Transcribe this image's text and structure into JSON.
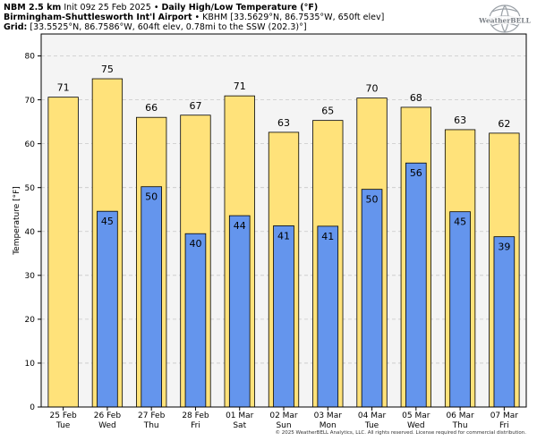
{
  "header": {
    "model": "NBM 2.5 km",
    "init": "Init 09z 25 Feb 2025",
    "separator": "•",
    "product": "Daily High/Low Temperature (°F)",
    "station_name": "Birmingham-Shuttlesworth Int'l Airport",
    "station_info": "KBHM [33.5629°N, 86.7535°W, 650ft elev]",
    "grid_label": "Grid:",
    "grid_info": "[33.5525°N, 86.7586°W, 604ft elev, 0.78mi to the SSW (202.3)°]"
  },
  "logo": {
    "text": "WeatherBELL"
  },
  "footer": "© 2025 WeatherBELL Analytics, LLC. All rights reserved. License required for commercial distribution.",
  "colors": {
    "high": "#ffe27a",
    "low": "#6495ed",
    "plot_bg": "#f4f4f4",
    "grid": "#c8c8c8"
  },
  "chart_data": {
    "type": "bar",
    "ylabel": "Temperature [°F]",
    "ylim": [
      0,
      85
    ],
    "yticks": [
      0,
      10,
      20,
      30,
      40,
      50,
      60,
      70,
      80
    ],
    "grid": true,
    "categories": [
      {
        "date": "25 Feb",
        "day": "Tue"
      },
      {
        "date": "26 Feb",
        "day": "Wed"
      },
      {
        "date": "27 Feb",
        "day": "Thu"
      },
      {
        "date": "28 Feb",
        "day": "Fri"
      },
      {
        "date": "01 Mar",
        "day": "Sat"
      },
      {
        "date": "02 Mar",
        "day": "Sun"
      },
      {
        "date": "03 Mar",
        "day": "Mon"
      },
      {
        "date": "04 Mar",
        "day": "Tue"
      },
      {
        "date": "05 Mar",
        "day": "Wed"
      },
      {
        "date": "06 Mar",
        "day": "Thu"
      },
      {
        "date": "07 Mar",
        "day": "Fri"
      }
    ],
    "series": [
      {
        "values": [
          70.6,
          74.8,
          66.0,
          66.5,
          70.9,
          62.6,
          65.3,
          70.4,
          68.3,
          63.2,
          62.4
        ],
        "labels": [
          "71",
          "75",
          "66",
          "67",
          "71",
          "63",
          "65",
          "70",
          "68",
          "63",
          "62"
        ]
      },
      {
        "values": [
          null,
          44.6,
          50.2,
          39.5,
          43.6,
          41.3,
          41.2,
          49.6,
          55.6,
          44.5,
          38.8
        ],
        "labels": [
          "",
          "45",
          "50",
          "40",
          "44",
          "41",
          "41",
          "50",
          "56",
          "45",
          "39"
        ]
      }
    ]
  }
}
